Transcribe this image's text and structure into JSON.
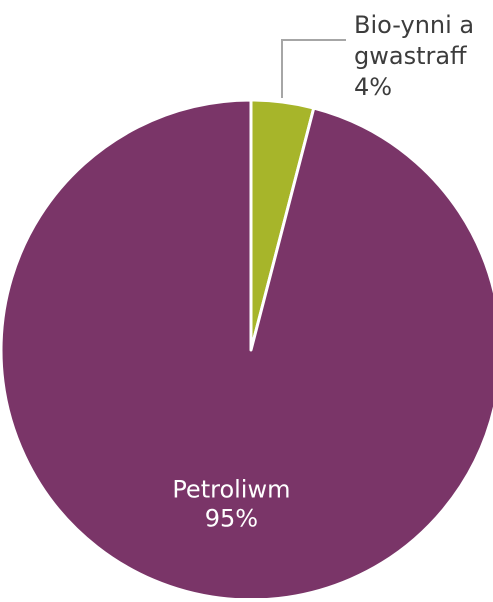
{
  "chart_data": {
    "type": "pie",
    "title": "",
    "start_angle_deg": 0,
    "direction": "clockwise",
    "slices": [
      {
        "name": "Bio-ynni a gwastraff",
        "label_lines": [
          "Bio-ynni a",
          "gwastraff"
        ],
        "value": 4,
        "value_label": "4%",
        "color": "#a7b52a",
        "label_position": "outside-top-right",
        "leader_line": true
      },
      {
        "name": "Petroliwm",
        "label_lines": [
          "Petroliwm"
        ],
        "value": 95,
        "value_label": "95%",
        "color": "#7a3568",
        "label_position": "inside",
        "leader_line": false
      }
    ],
    "slice_border_color": "#ffffff",
    "leader_line_color": "#a6a6a6",
    "outside_label_color": "#3c3c3c",
    "inside_label_color": "#ffffff",
    "legend": "none"
  }
}
